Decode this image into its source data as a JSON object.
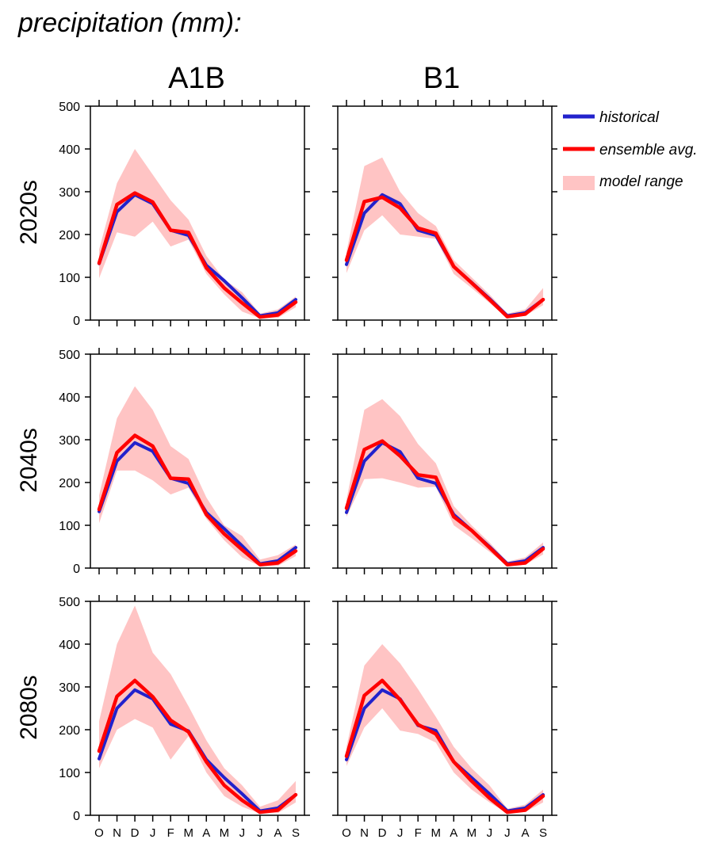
{
  "figure": {
    "title": "precipitation (mm):",
    "columns": [
      "A1B",
      "B1"
    ],
    "rows": [
      "2020s",
      "2040s",
      "2080s"
    ]
  },
  "legend": {
    "items": [
      {
        "label": "historical",
        "color": "#2222cc",
        "kind": "line"
      },
      {
        "label": "ensemble avg.",
        "color": "#ff0000",
        "kind": "line"
      },
      {
        "label": "model range",
        "color": "#ffc4c4",
        "kind": "band"
      }
    ]
  },
  "chart_data": [
    {
      "type": "line",
      "panel": "A1B 2020s",
      "categories": [
        "O",
        "N",
        "D",
        "J",
        "F",
        "M",
        "A",
        "M",
        "J",
        "J",
        "A",
        "S"
      ],
      "y_ticks": [
        0,
        100,
        200,
        300,
        400,
        500
      ],
      "ylim": [
        0,
        500
      ],
      "series": [
        {
          "name": "historical",
          "values": [
            132,
            253,
            293,
            272,
            210,
            198,
            128,
            92,
            52,
            10,
            17,
            48
          ]
        },
        {
          "name": "ensemble avg.",
          "values": [
            133,
            270,
            297,
            276,
            210,
            205,
            122,
            75,
            40,
            7,
            12,
            42
          ]
        },
        {
          "name": "model range",
          "upper": [
            165,
            320,
            400,
            340,
            280,
            235,
            150,
            95,
            65,
            15,
            25,
            55
          ],
          "lower": [
            98,
            205,
            195,
            230,
            172,
            188,
            108,
            60,
            20,
            4,
            5,
            30
          ]
        }
      ]
    },
    {
      "type": "line",
      "panel": "B1 2020s",
      "categories": [
        "O",
        "N",
        "D",
        "J",
        "F",
        "M",
        "A",
        "M",
        "J",
        "J",
        "A",
        "S"
      ],
      "y_ticks": [
        0,
        100,
        200,
        300,
        400,
        500
      ],
      "ylim": [
        0,
        500
      ],
      "series": [
        {
          "name": "historical",
          "values": [
            130,
            250,
            293,
            272,
            210,
            198,
            125,
            88,
            50,
            10,
            17,
            48
          ]
        },
        {
          "name": "ensemble avg.",
          "values": [
            140,
            277,
            287,
            262,
            215,
            203,
            125,
            87,
            48,
            8,
            14,
            48
          ]
        },
        {
          "name": "model range",
          "upper": [
            160,
            360,
            380,
            300,
            250,
            220,
            140,
            100,
            60,
            15,
            25,
            75
          ],
          "lower": [
            110,
            210,
            245,
            200,
            195,
            190,
            108,
            75,
            40,
            4,
            10,
            35
          ]
        }
      ]
    },
    {
      "type": "line",
      "panel": "A1B 2040s",
      "categories": [
        "O",
        "N",
        "D",
        "J",
        "F",
        "M",
        "A",
        "M",
        "J",
        "J",
        "A",
        "S"
      ],
      "y_ticks": [
        0,
        100,
        200,
        300,
        400,
        500
      ],
      "ylim": [
        0,
        500
      ],
      "series": [
        {
          "name": "historical",
          "values": [
            132,
            250,
            293,
            273,
            210,
            198,
            130,
            92,
            52,
            10,
            17,
            48
          ]
        },
        {
          "name": "ensemble avg.",
          "values": [
            137,
            270,
            310,
            285,
            210,
            208,
            125,
            80,
            43,
            8,
            12,
            40
          ]
        },
        {
          "name": "model range",
          "upper": [
            170,
            350,
            425,
            370,
            285,
            255,
            165,
            100,
            75,
            20,
            30,
            55
          ],
          "lower": [
            105,
            228,
            228,
            205,
            172,
            188,
            115,
            65,
            25,
            4,
            5,
            28
          ]
        }
      ]
    },
    {
      "type": "line",
      "panel": "B1 2040s",
      "categories": [
        "O",
        "N",
        "D",
        "J",
        "F",
        "M",
        "A",
        "M",
        "J",
        "J",
        "A",
        "S"
      ],
      "y_ticks": [
        0,
        100,
        200,
        300,
        400,
        500
      ],
      "ylim": [
        0,
        500
      ],
      "series": [
        {
          "name": "historical",
          "values": [
            130,
            250,
            293,
            272,
            210,
            198,
            125,
            88,
            50,
            10,
            17,
            48
          ]
        },
        {
          "name": "ensemble avg.",
          "values": [
            140,
            277,
            297,
            262,
            218,
            212,
            120,
            88,
            48,
            8,
            12,
            45
          ]
        },
        {
          "name": "model range",
          "upper": [
            160,
            370,
            395,
            355,
            290,
            245,
            145,
            100,
            60,
            15,
            25,
            60
          ],
          "lower": [
            120,
            208,
            210,
            200,
            188,
            190,
            100,
            70,
            38,
            5,
            8,
            32
          ]
        }
      ]
    },
    {
      "type": "line",
      "panel": "A1B 2080s",
      "categories": [
        "O",
        "N",
        "D",
        "J",
        "F",
        "M",
        "A",
        "M",
        "J",
        "J",
        "A",
        "S"
      ],
      "y_ticks": [
        0,
        100,
        200,
        300,
        400,
        500
      ],
      "ylim": [
        0,
        500
      ],
      "series": [
        {
          "name": "historical",
          "values": [
            132,
            250,
            293,
            272,
            213,
            197,
            130,
            88,
            50,
            10,
            17,
            48
          ]
        },
        {
          "name": "ensemble avg.",
          "values": [
            150,
            278,
            315,
            277,
            222,
            195,
            125,
            70,
            35,
            7,
            12,
            48
          ]
        },
        {
          "name": "model range",
          "upper": [
            220,
            400,
            490,
            380,
            330,
            255,
            175,
            110,
            70,
            20,
            35,
            80
          ],
          "lower": [
            110,
            200,
            225,
            205,
            130,
            185,
            100,
            45,
            20,
            4,
            5,
            30
          ]
        }
      ]
    },
    {
      "type": "line",
      "panel": "B1 2080s",
      "categories": [
        "O",
        "N",
        "D",
        "J",
        "F",
        "M",
        "A",
        "M",
        "J",
        "J",
        "A",
        "S"
      ],
      "y_ticks": [
        0,
        100,
        200,
        300,
        400,
        500
      ],
      "ylim": [
        0,
        500
      ],
      "series": [
        {
          "name": "historical",
          "values": [
            130,
            250,
            293,
            272,
            210,
            198,
            125,
            88,
            50,
            10,
            17,
            48
          ]
        },
        {
          "name": "ensemble avg.",
          "values": [
            138,
            280,
            315,
            270,
            212,
            190,
            125,
            80,
            40,
            7,
            12,
            45
          ]
        },
        {
          "name": "model range",
          "upper": [
            160,
            350,
            400,
            355,
            295,
            230,
            160,
            110,
            70,
            15,
            25,
            60
          ],
          "lower": [
            115,
            205,
            250,
            198,
            190,
            170,
            100,
            60,
            30,
            4,
            8,
            30
          ]
        }
      ]
    }
  ]
}
